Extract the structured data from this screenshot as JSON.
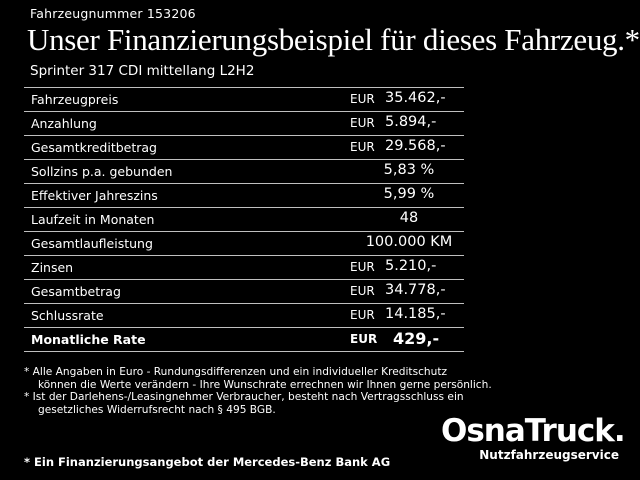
{
  "header": {
    "vehicle_number": "Fahrzeugnummer 153206",
    "headline": "Unser Finanzierungsbeispiel für dieses Fahrzeug.*",
    "model": "Sprinter 317 CDI mittellang L2H2"
  },
  "table": {
    "rows": [
      {
        "label": "Fahrzeugpreis",
        "currency": "EUR",
        "value": "35.462,-"
      },
      {
        "label": "Anzahlung",
        "currency": "EUR",
        "value": "5.894,-"
      },
      {
        "label": "Gesamtkreditbetrag",
        "currency": "EUR",
        "value": "29.568,-"
      },
      {
        "label": "Sollzins p.a. gebunden",
        "currency": "",
        "value": "5,83 %"
      },
      {
        "label": "Effektiver Jahreszins",
        "currency": "",
        "value": "5,99 %"
      },
      {
        "label": "Laufzeit in Monaten",
        "currency": "",
        "value": "48"
      },
      {
        "label": "Gesamtlaufleistung",
        "currency": "",
        "value": "100.000 KM"
      },
      {
        "label": "Zinsen",
        "currency": "EUR",
        "value": "5.210,-"
      },
      {
        "label": "Gesamtbetrag",
        "currency": "EUR",
        "value": "34.778,-"
      },
      {
        "label": "Schlussrate",
        "currency": "EUR",
        "value": "14.185,-"
      },
      {
        "label": "Monatliche Rate",
        "currency": "EUR",
        "value": "429,-"
      }
    ]
  },
  "footnotes": [
    "* Alle Angaben in Euro - Rundungsdifferenzen und ein individueller Kreditschutz",
    "können die Werte verändern - Ihre Wunschrate errechnen wir Ihnen gerne persönlich.",
    "* Ist der Darlehens-/Leasingnehmer Verbraucher, besteht nach Vertragsschluss ein",
    "gesetzliches Widerrufsrecht nach § 495 BGB."
  ],
  "bank_note": "* Ein Finanzierungsangebot der Mercedes-Benz Bank AG",
  "logo": {
    "name": "OsnaTruck.",
    "tagline": "Nutzfahrzeugservice"
  }
}
